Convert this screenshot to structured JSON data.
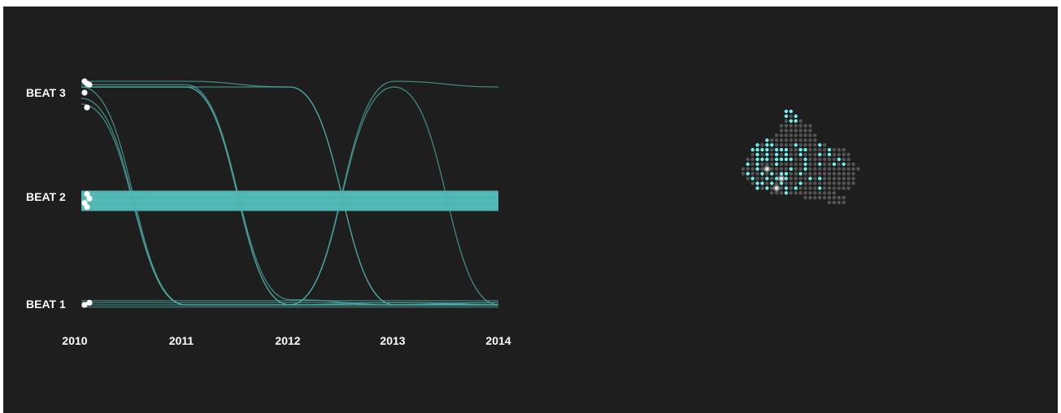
{
  "colors": {
    "background": "#1e1e1e",
    "line": "#4fb3ad",
    "band": "#5fe0dc",
    "dot_active": "#6ff0ec",
    "dot_inactive": "#555555",
    "dot_marker": "#ffffff"
  },
  "chart_data": {
    "type": "line",
    "title": "",
    "xlabel": "",
    "ylabel": "",
    "x_ticks": [
      "2010",
      "2011",
      "2012",
      "2013",
      "2014"
    ],
    "y_categories": [
      "BEAT 1",
      "BEAT 2",
      "BEAT 3"
    ],
    "xlim": [
      2010,
      2014
    ],
    "grid": false,
    "legend": "none",
    "band": {
      "level": "BEAT 2",
      "line_count": 28
    },
    "paths": [
      {
        "x": [
          2010,
          2011,
          2012,
          2013,
          2014
        ],
        "y": [
          3.0,
          3.0,
          1.0,
          1.0,
          1.0
        ]
      },
      {
        "x": [
          2010,
          2011,
          2012,
          2013,
          2014
        ],
        "y": [
          3.02,
          3.02,
          1.05,
          1.0,
          1.0
        ]
      },
      {
        "x": [
          2010,
          2011,
          2012,
          2013,
          2014
        ],
        "y": [
          3.0,
          3.0,
          3.0,
          1.0,
          1.0
        ]
      },
      {
        "x": [
          2010,
          2011,
          2012,
          2013,
          2014
        ],
        "y": [
          3.05,
          3.05,
          3.0,
          1.0,
          1.02
        ]
      },
      {
        "x": [
          2010,
          2011,
          2012,
          2013,
          2014
        ],
        "y": [
          3.0,
          1.0,
          1.0,
          1.0,
          1.0
        ]
      },
      {
        "x": [
          2010,
          2011,
          2012,
          2013,
          2014
        ],
        "y": [
          2.9,
          1.0,
          1.0,
          1.02,
          1.0
        ]
      },
      {
        "x": [
          2010,
          2011,
          2012,
          2013,
          2014
        ],
        "y": [
          2.85,
          1.0,
          1.0,
          3.05,
          3.0
        ]
      },
      {
        "x": [
          2010,
          2011,
          2012,
          2013,
          2014
        ],
        "y": [
          3.0,
          3.0,
          1.0,
          3.0,
          1.0
        ]
      },
      {
        "x": [
          2010,
          2011,
          2012,
          2013,
          2014
        ],
        "y": [
          1.0,
          1.0,
          1.0,
          1.0,
          1.0
        ]
      },
      {
        "x": [
          2010,
          2011,
          2012,
          2013,
          2014
        ],
        "y": [
          1.02,
          1.02,
          1.02,
          1.02,
          1.02
        ]
      },
      {
        "x": [
          2010,
          2011,
          2012,
          2013,
          2014
        ],
        "y": [
          1.04,
          1.04,
          1.04,
          1.04,
          1.04
        ]
      },
      {
        "x": [
          2010,
          2011,
          2012,
          2013,
          2014
        ],
        "y": [
          0.98,
          0.98,
          0.98,
          0.98,
          0.98
        ]
      }
    ],
    "start_points": [
      {
        "x": 2010,
        "y": 3.05
      },
      {
        "x": 2010,
        "y": 3.03
      },
      {
        "x": 2010,
        "y": 3.02
      },
      {
        "x": 2010,
        "y": 2.95
      },
      {
        "x": 2010,
        "y": 2.82
      },
      {
        "x": 2010,
        "y": 1.02
      },
      {
        "x": 2010,
        "y": 1.0
      },
      {
        "x": 2010,
        "y": 2.06
      },
      {
        "x": 2010,
        "y": 2.02
      },
      {
        "x": 2010,
        "y": 1.98
      },
      {
        "x": 2010,
        "y": 1.94
      }
    ]
  },
  "map": {
    "rows": [
      "..........aa.......................",
      "..........ada......................",
      "..........daad.....................",
      ".........ddddddd...................",
      ".........ddddddd...................",
      "........ddddddddd..................",
      "......adddddddddd..................",
      "....adaaddddaddddad................",
      "...aaaadaaaddaaddddaddd............",
      "...dadadadaddadddadadddd...........",
      "..ddaaadaaaaddaddddddadd...........",
      "..adadddadddddaddaddadadd..........",
      ".dddaddddddaddaddddddddddd.........",
      ".daddadadaaddaddddddddddd..........",
      "..daddadadaddddadaddddddd..........",
      "...daadadadddaddddddddddd..........",
      "....adadddadaddddadddddd...........",
      ".......dddadddddddddd..............",
      "..............ddddddddd............",
      "...................dddd............"
    ],
    "highlights": [
      [
        12,
        6
      ],
      [
        14,
        9
      ],
      [
        16,
        8
      ]
    ]
  }
}
